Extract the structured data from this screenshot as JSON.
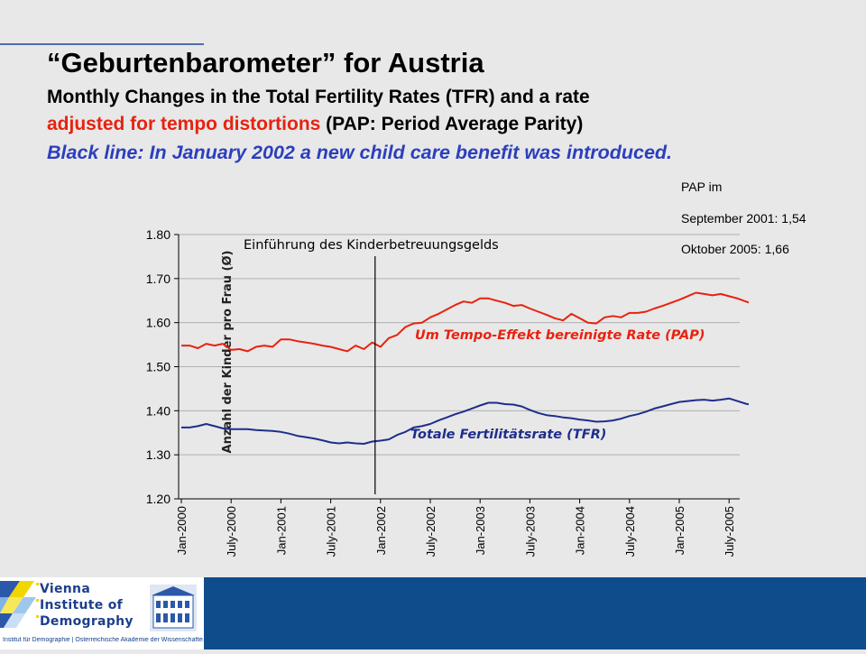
{
  "heading": {
    "title": "“Geburtenbarometer” for Austria",
    "line1": "Monthly Changes in the Total Fertility Rates (TFR) and a rate",
    "line2_red": "adjusted for tempo distortions",
    "line2_rest": " (PAP: Period Average Parity)",
    "line3": "Black line: In January 2002 a new child care benefit was introduced."
  },
  "pap_note": {
    "line1": "PAP im",
    "line2": "September 2001: 1,54",
    "line3": "Oktober 2005: 1,66"
  },
  "colors": {
    "pap": "#e8220f",
    "tfr": "#1f2d8c",
    "subtitle_blue": "#2b3fbd",
    "footer": "#0f4c8c"
  },
  "logo": {
    "line1": "Vienna",
    "line2": "Institute of",
    "line3": "Demography",
    "caption": "Institut für Demographie | Österreichische Akademie der Wissenschaften"
  },
  "chart_data": {
    "type": "line",
    "ylabel": "Anzahl der Kinder pro Frau (Ø)",
    "ylim": [
      1.2,
      1.8
    ],
    "yticks": [
      "1.20",
      "1.30",
      "1.40",
      "1.50",
      "1.60",
      "1.70",
      "1.80"
    ],
    "grid": true,
    "x_tick_labels": [
      "Jan-2000",
      "July-2000",
      "Jan-2001",
      "July-2001",
      "Jan-2002",
      "July-2002",
      "Jan-2003",
      "July-2003",
      "Jan-2004",
      "July-2004",
      "Jan-2005",
      "July-2005"
    ],
    "x_start": "Jan-2000",
    "x_end": "Oct-2005",
    "annotation": {
      "label": "Einführung des Kinderbetreuungsgelds",
      "at": "Jan-2002"
    },
    "series": [
      {
        "name": "Um Tempo-Effekt bereinigte Rate (PAP)",
        "values": [
          1.548,
          1.548,
          1.542,
          1.552,
          1.548,
          1.552,
          1.538,
          1.54,
          1.535,
          1.545,
          1.548,
          1.545,
          1.562,
          1.562,
          1.558,
          1.555,
          1.552,
          1.548,
          1.545,
          1.54,
          1.535,
          1.548,
          1.54,
          1.555,
          1.545,
          1.565,
          1.572,
          1.59,
          1.598,
          1.6,
          1.612,
          1.62,
          1.63,
          1.64,
          1.648,
          1.645,
          1.655,
          1.655,
          1.65,
          1.645,
          1.638,
          1.64,
          1.632,
          1.625,
          1.618,
          1.61,
          1.605,
          1.62,
          1.61,
          1.6,
          1.598,
          1.612,
          1.615,
          1.612,
          1.622,
          1.622,
          1.625,
          1.632,
          1.638,
          1.645,
          1.652,
          1.66,
          1.668,
          1.665,
          1.662,
          1.665,
          1.66,
          1.655,
          1.648,
          1.642,
          1.64,
          1.652,
          1.64,
          1.65,
          1.652,
          1.65,
          1.652,
          1.65,
          1.655,
          1.66
        ]
      },
      {
        "name": "Totale Fertilitätsrate (TFR)",
        "values": [
          1.362,
          1.362,
          1.365,
          1.37,
          1.365,
          1.36,
          1.358,
          1.358,
          1.358,
          1.356,
          1.355,
          1.354,
          1.352,
          1.348,
          1.343,
          1.34,
          1.337,
          1.333,
          1.328,
          1.326,
          1.328,
          1.326,
          1.325,
          1.33,
          1.332,
          1.335,
          1.345,
          1.352,
          1.362,
          1.365,
          1.37,
          1.378,
          1.385,
          1.392,
          1.398,
          1.405,
          1.412,
          1.418,
          1.418,
          1.415,
          1.414,
          1.41,
          1.402,
          1.395,
          1.39,
          1.388,
          1.385,
          1.383,
          1.38,
          1.378,
          1.375,
          1.376,
          1.378,
          1.382,
          1.388,
          1.392,
          1.398,
          1.405,
          1.41,
          1.415,
          1.42,
          1.422,
          1.424,
          1.425,
          1.423,
          1.425,
          1.428,
          1.422,
          1.416,
          1.412,
          1.41,
          1.408,
          1.41,
          1.412,
          1.414,
          1.412,
          1.414,
          1.414,
          1.412,
          1.418
        ]
      }
    ]
  }
}
